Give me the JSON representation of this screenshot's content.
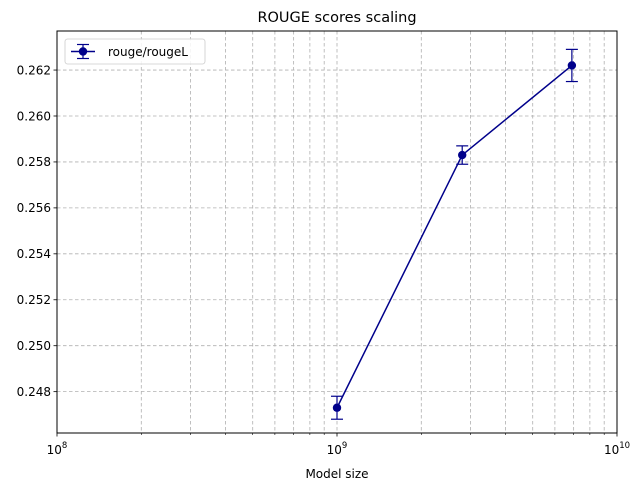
{
  "chart_data": {
    "type": "line",
    "title": "ROUGE scores scaling",
    "xlabel": "Model size",
    "ylabel": "",
    "x_scale": "log",
    "xlim": [
      100000000,
      10000000000
    ],
    "ylim": [
      0.2462,
      0.2637
    ],
    "x_ticks": [
      {
        "value": 100000000,
        "base": "10",
        "exp": "8"
      },
      {
        "value": 1000000000,
        "base": "10",
        "exp": "9"
      },
      {
        "value": 10000000000,
        "base": "10",
        "exp": "10"
      }
    ],
    "y_ticks": [
      "0.248",
      "0.250",
      "0.252",
      "0.254",
      "0.256",
      "0.258",
      "0.260",
      "0.262"
    ],
    "grid": "both, dashed, major and minor",
    "legend_position": "top-left",
    "series": [
      {
        "name": "rouge/rougeL",
        "color": "#00008b",
        "x": [
          1000000000,
          2800000000,
          6900000000
        ],
        "y": [
          0.2473,
          0.2583,
          0.2622
        ],
        "yerr": [
          0.0005,
          0.0004,
          0.0007
        ]
      }
    ]
  }
}
